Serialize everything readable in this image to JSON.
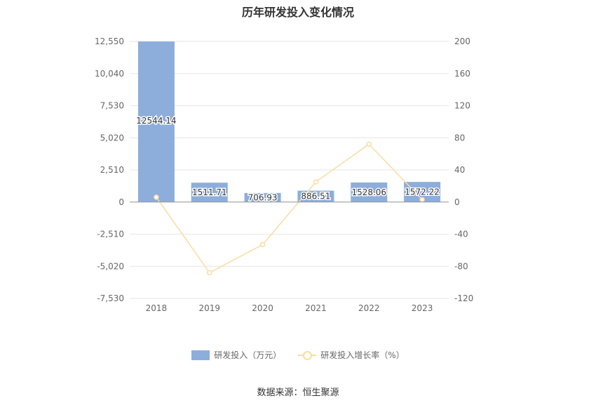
{
  "chart_data": {
    "type": "bar",
    "title": "历年研发投入变化情况",
    "categories": [
      "2018",
      "2019",
      "2020",
      "2021",
      "2022",
      "2023"
    ],
    "series": [
      {
        "name": "研发投入（万元）",
        "type": "bar",
        "axis": "left",
        "values": [
          12544.14,
          1511.71,
          706.93,
          886.51,
          1528.06,
          1572.22
        ],
        "labels": [
          "12544.14",
          "1511.71",
          "706.93",
          "886.51",
          "1528.06",
          "1572.22"
        ],
        "color": "#8daedb"
      },
      {
        "name": "研发投入增长率（%）",
        "type": "line",
        "axis": "right",
        "values": [
          6.0,
          -88.0,
          -53.0,
          25.0,
          72.0,
          3.0
        ],
        "color": "#fbdca0"
      }
    ],
    "y_left": {
      "ylim": [
        -7530,
        12550
      ],
      "ticks": [
        "12,550",
        "10,040",
        "7,530",
        "5,020",
        "2,510",
        "0",
        "-2,510",
        "-5,020",
        "-7,530"
      ]
    },
    "y_right": {
      "ylim": [
        -120,
        200
      ],
      "ticks": [
        "200",
        "160",
        "120",
        "80",
        "40",
        "0",
        "-40",
        "-80",
        "-120"
      ]
    },
    "grid": true,
    "legend_position": "bottom"
  },
  "source": "数据来源：恒生聚源"
}
